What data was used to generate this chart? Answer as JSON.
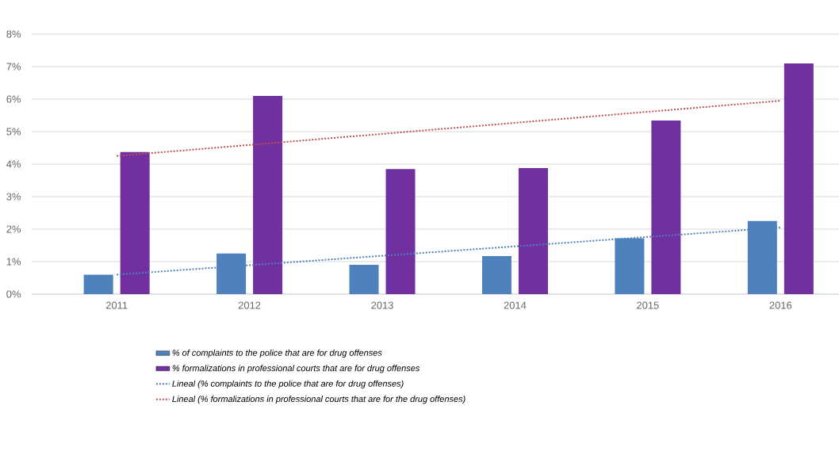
{
  "chart_data": {
    "type": "bar",
    "categories": [
      "2011",
      "2012",
      "2013",
      "2014",
      "2015",
      "2016"
    ],
    "series": [
      {
        "name": "% of complaints to the police that are for drug offenses",
        "color": "#4f81bd",
        "values": [
          0.6,
          1.25,
          0.9,
          1.17,
          1.72,
          2.25
        ]
      },
      {
        "name": "% formalizations in professional courts that are for drug offenses",
        "color": "#7030a0",
        "values": [
          4.37,
          6.1,
          3.85,
          3.88,
          5.34,
          7.1
        ]
      },
      {
        "name": "Lineal (% complaints to the police that are for drug offenses)",
        "type": "line",
        "line_style": "dotted",
        "color": "#4f81bd",
        "values": [
          0.6,
          null,
          null,
          null,
          null,
          2.05
        ]
      },
      {
        "name": "Lineal (% formalizations in professional courts that are for the drug offenses)",
        "type": "line",
        "line_style": "dotted",
        "color": "#c0504d",
        "values": [
          4.25,
          null,
          null,
          null,
          null,
          5.95
        ]
      }
    ],
    "ylim": [
      0,
      8
    ],
    "yticks": [
      {
        "value": 0,
        "label": "0%"
      },
      {
        "value": 1,
        "label": "1%"
      },
      {
        "value": 2,
        "label": "2%"
      },
      {
        "value": 3,
        "label": "3%"
      },
      {
        "value": 4,
        "label": "4%"
      },
      {
        "value": 5,
        "label": "5%"
      },
      {
        "value": 6,
        "label": "6%"
      },
      {
        "value": 7,
        "label": "7%"
      },
      {
        "value": 8,
        "label": "8%"
      }
    ],
    "grid": "y",
    "legend": "bottom"
  }
}
